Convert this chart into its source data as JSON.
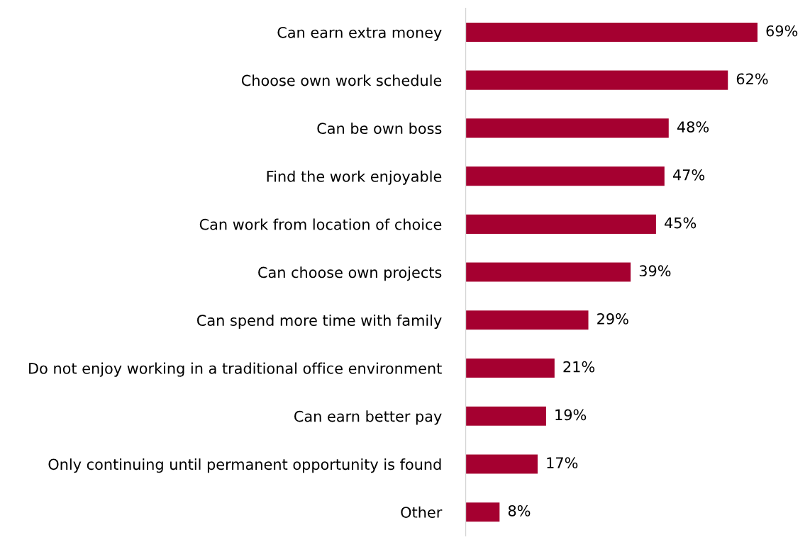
{
  "chart_data": {
    "type": "bar",
    "orientation": "horizontal",
    "categories": [
      "Can earn extra money",
      "Choose own work schedule",
      "Can be own boss",
      "Find the work enjoyable",
      "Can work from location of choice",
      "Can choose own projects",
      "Can spend more time with family",
      "Do not enjoy working in a traditional office environment",
      "Can earn better pay",
      "Only continuing until permanent opportunity is found",
      "Other"
    ],
    "values": [
      69,
      62,
      48,
      47,
      45,
      39,
      29,
      21,
      19,
      17,
      8
    ],
    "value_labels": [
      "69%",
      "62%",
      "48%",
      "47%",
      "45%",
      "39%",
      "29%",
      "21%",
      "19%",
      "17%",
      "8%"
    ],
    "color": "#a50030",
    "grid": false,
    "legend": false
  }
}
